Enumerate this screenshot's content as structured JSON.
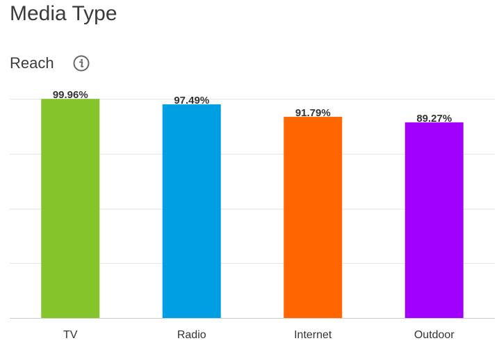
{
  "page": {
    "title": "Media Type"
  },
  "section": {
    "title": "Reach",
    "info_icon": "info-circle-icon"
  },
  "colors": {
    "gridline": "#e6e6e6",
    "axis": "#cccccc",
    "label_text": "#333333"
  },
  "chart_data": {
    "type": "bar",
    "title": "Reach",
    "categories": [
      "TV",
      "Radio",
      "Internet",
      "Outdoor"
    ],
    "values": [
      99.96,
      97.49,
      91.79,
      89.27
    ],
    "value_labels": [
      "99.96%",
      "97.49%",
      "91.79%",
      "89.27%"
    ],
    "colors": [
      "#86c42b",
      "#009ee3",
      "#ff6600",
      "#a100ff"
    ],
    "xlabel": "",
    "ylabel": "",
    "ylim": [
      0,
      100
    ],
    "grid": true,
    "legend": "none"
  }
}
